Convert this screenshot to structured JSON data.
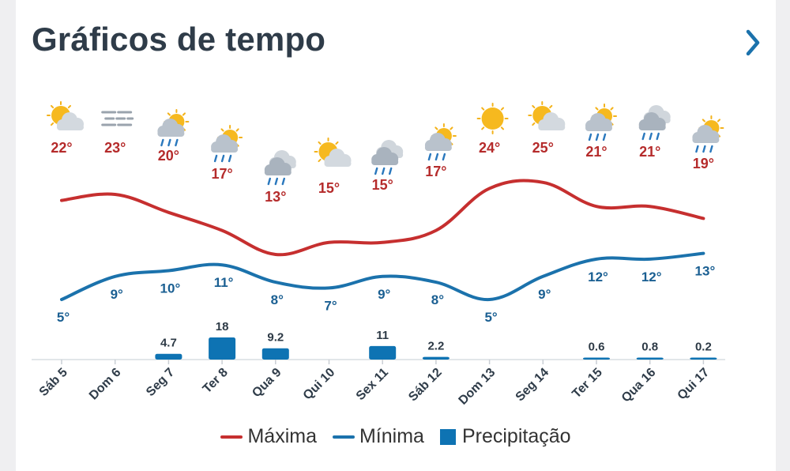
{
  "header": {
    "title": "Gráficos de tempo",
    "next_icon": "chevron-right-icon"
  },
  "colors": {
    "max": "#c62f2f",
    "min": "#1b72ac",
    "precip": "#0e73b3",
    "label_max": "#b52b2b",
    "label_min": "#1a5f92"
  },
  "legend": {
    "max_label": "Máxima",
    "min_label": "Mínima",
    "precip_label": "Precipitação"
  },
  "chart_data": {
    "type": "line",
    "categories": [
      "Sáb 5",
      "Dom 6",
      "Seg 7",
      "Ter 8",
      "Qua 9",
      "Qui 10",
      "Sex 11",
      "Sáb 12",
      "Dom 13",
      "Seg 14",
      "Ter 15",
      "Qua 16",
      "Qui 17"
    ],
    "icons": [
      "partly-sunny-icon",
      "fog-icon",
      "sun-rain-icon",
      "sun-rain-icon",
      "rain-icon",
      "partly-cloudy-icon",
      "rain-icon",
      "sun-rain-icon",
      "sun-icon",
      "partly-cloudy-icon",
      "sun-rain-icon",
      "rain-icon",
      "sun-rain-icon"
    ],
    "series": [
      {
        "name": "Máxima",
        "values": [
          22,
          23,
          20,
          17,
          13,
          15,
          15,
          17,
          24,
          25,
          21,
          21,
          19
        ],
        "labels": [
          "22°",
          "23°",
          "20°",
          "17°",
          "13°",
          "15°",
          "15°",
          "17°",
          "24°",
          "25°",
          "21°",
          "21°",
          "19°"
        ]
      },
      {
        "name": "Mínima",
        "values": [
          5,
          9,
          10,
          11,
          8,
          7,
          9,
          8,
          5,
          9,
          12,
          12,
          13
        ],
        "labels": [
          "5°",
          "9°",
          "10°",
          "11°",
          "8°",
          "7°",
          "9°",
          "8°",
          "5°",
          "9°",
          "12°",
          "12°",
          "13°"
        ]
      },
      {
        "name": "Precipitação",
        "values": [
          0,
          0,
          4.7,
          18,
          9.2,
          0,
          11,
          2.2,
          0,
          0,
          0.6,
          0.8,
          0.2
        ],
        "labels": [
          "",
          "",
          "4.7",
          "18",
          "9.2",
          "",
          "11",
          "2.2",
          "",
          "",
          "0.6",
          "0.8",
          "0.2"
        ]
      }
    ]
  }
}
